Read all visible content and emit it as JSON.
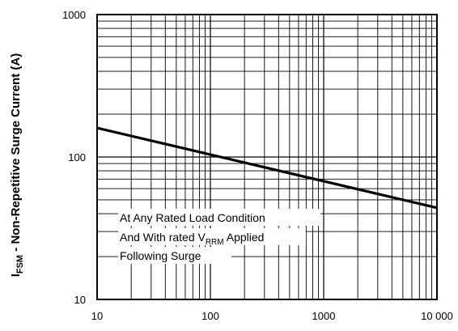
{
  "chart_data": {
    "type": "line",
    "title": "",
    "xlabel": "",
    "ylabel": {
      "symbol": "I",
      "subscript": "FSM",
      "rest": " - Non-Repetitive Surge Current (A)"
    },
    "x_scale": "log",
    "y_scale": "log",
    "xlim": [
      10,
      10000
    ],
    "ylim": [
      10,
      1000
    ],
    "grid": true,
    "x_ticks": [
      10,
      100,
      1000,
      10000
    ],
    "x_tick_labels": [
      "10",
      "100",
      "1000",
      "10 000"
    ],
    "y_ticks": [
      10,
      100,
      1000
    ],
    "y_tick_labels": [
      "10",
      "100",
      "1000"
    ],
    "series": [
      {
        "x": [
          10,
          10000
        ],
        "y": [
          160,
          44
        ],
        "color": "#000000"
      }
    ],
    "annotation": {
      "line1": "At Any Rated Load Condition",
      "line2_prefix": "And With rated V",
      "line2_sub": "RRM",
      "line2_suffix": " Applied",
      "line3": "Following Surge"
    }
  }
}
